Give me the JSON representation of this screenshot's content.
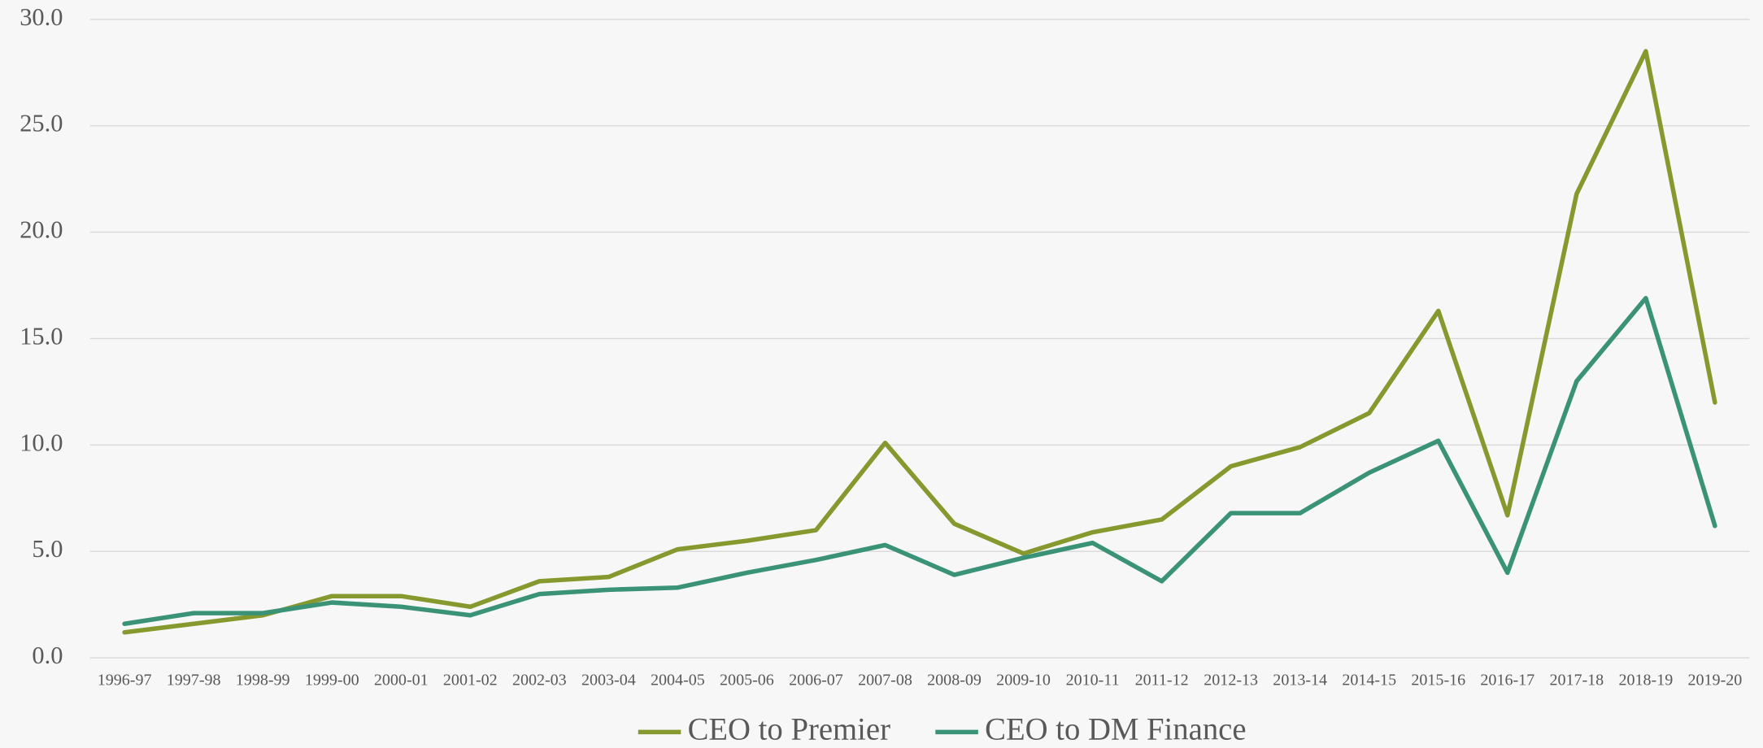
{
  "chart_data": {
    "type": "line",
    "categories": [
      "1996-97",
      "1997-98",
      "1998-99",
      "1999-00",
      "2000-01",
      "2001-02",
      "2002-03",
      "2003-04",
      "2004-05",
      "2005-06",
      "2006-07",
      "2007-08",
      "2008-09",
      "2009-10",
      "2010-11",
      "2011-12",
      "2012-13",
      "2013-14",
      "2014-15",
      "2015-16",
      "2016-17",
      "2017-18",
      "2018-19",
      "2019-20"
    ],
    "series": [
      {
        "name": "CEO to Premier",
        "color": "#86992f",
        "values": [
          1.2,
          1.6,
          2.0,
          2.9,
          2.9,
          2.4,
          3.6,
          3.8,
          5.1,
          5.5,
          6.0,
          10.1,
          6.3,
          4.9,
          5.9,
          6.5,
          9.0,
          9.9,
          11.5,
          16.3,
          6.7,
          21.8,
          28.5,
          12.0
        ]
      },
      {
        "name": "CEO to DM Finance",
        "color": "#3a9277",
        "values": [
          1.6,
          2.1,
          2.1,
          2.6,
          2.4,
          2.0,
          3.0,
          3.2,
          3.3,
          4.0,
          4.6,
          5.3,
          3.9,
          4.7,
          5.4,
          3.6,
          6.8,
          6.8,
          8.7,
          10.2,
          4.0,
          13.0,
          16.9,
          6.2
        ]
      }
    ],
    "ylim": [
      0,
      30
    ],
    "yticks": [
      {
        "value": 0,
        "label": "0.0"
      },
      {
        "value": 5,
        "label": "5.0"
      },
      {
        "value": 10,
        "label": "10.0"
      },
      {
        "value": 15,
        "label": "15.0"
      },
      {
        "value": 20,
        "label": "20.0"
      },
      {
        "value": 25,
        "label": "25.0"
      },
      {
        "value": 30,
        "label": "30.0"
      }
    ],
    "grid": true,
    "legend": "bottom"
  }
}
